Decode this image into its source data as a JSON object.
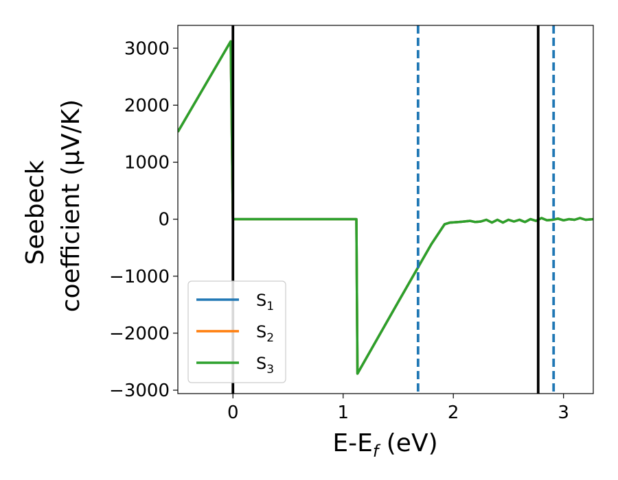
{
  "chart_data": {
    "type": "line",
    "xlabel": {
      "main": "E-E",
      "sub": "f",
      "rest": " (eV)"
    },
    "ylabel": {
      "line1": "Seebeck",
      "line2": "coefficient  (μV/K)"
    },
    "xlim": [
      -0.5,
      3.27
    ],
    "ylim": [
      -3060,
      3400
    ],
    "xticks": [
      0,
      1,
      2,
      3
    ],
    "yticks": [
      -3000,
      -2000,
      -1000,
      0,
      1000,
      2000,
      3000
    ],
    "ytick_labels": [
      "−3000",
      "−2000",
      "−1000",
      "0",
      "1000",
      "2000",
      "3000"
    ],
    "legend": {
      "position": "lower-left"
    },
    "series": [
      {
        "name": "S",
        "sub": "1",
        "color": "#1f77b4",
        "x": [
          -0.5,
          -0.02,
          0.0,
          0.02,
          1.1,
          1.12,
          1.13,
          1.5,
          1.8,
          1.92,
          1.97,
          2.05,
          2.1,
          2.15,
          2.2,
          2.25,
          2.3,
          2.35,
          2.4,
          2.45,
          2.5,
          2.55,
          2.6,
          2.65,
          2.7,
          2.75,
          2.8,
          2.85,
          2.9,
          2.95,
          3.0,
          3.05,
          3.1,
          3.15,
          3.2,
          3.27
        ],
        "y": [
          1530,
          3120,
          0,
          0,
          0,
          0,
          -2710,
          -1450,
          -440,
          -90,
          -60,
          -50,
          -40,
          -30,
          -50,
          -40,
          -10,
          -60,
          -10,
          -60,
          -10,
          -40,
          -10,
          -50,
          0,
          -30,
          20,
          -20,
          -10,
          10,
          -20,
          0,
          -10,
          20,
          -10,
          0
        ]
      },
      {
        "name": "S",
        "sub": "2",
        "color": "#ff7f0e",
        "x": [
          -0.5,
          -0.02,
          0.0,
          0.02,
          1.1,
          1.12,
          1.13,
          1.5,
          1.8,
          1.92,
          1.97,
          2.05,
          2.1,
          2.15,
          2.2,
          2.25,
          2.3,
          2.35,
          2.4,
          2.45,
          2.5,
          2.55,
          2.6,
          2.65,
          2.7,
          2.75,
          2.8,
          2.85,
          2.9,
          2.95,
          3.0,
          3.05,
          3.1,
          3.15,
          3.2,
          3.27
        ],
        "y": [
          1530,
          3120,
          0,
          0,
          0,
          0,
          -2710,
          -1450,
          -440,
          -90,
          -60,
          -50,
          -40,
          -30,
          -50,
          -40,
          -10,
          -60,
          -10,
          -60,
          -10,
          -40,
          -10,
          -50,
          0,
          -30,
          20,
          -20,
          -10,
          10,
          -20,
          0,
          -10,
          20,
          -10,
          0
        ]
      },
      {
        "name": "S",
        "sub": "3",
        "color": "#2ca02c",
        "x": [
          -0.5,
          -0.02,
          0.0,
          0.02,
          1.1,
          1.12,
          1.13,
          1.5,
          1.8,
          1.92,
          1.97,
          2.05,
          2.1,
          2.15,
          2.2,
          2.25,
          2.3,
          2.35,
          2.4,
          2.45,
          2.5,
          2.55,
          2.6,
          2.65,
          2.7,
          2.75,
          2.8,
          2.85,
          2.9,
          2.95,
          3.0,
          3.05,
          3.1,
          3.15,
          3.2,
          3.27
        ],
        "y": [
          1530,
          3120,
          0,
          0,
          0,
          0,
          -2710,
          -1450,
          -440,
          -90,
          -60,
          -50,
          -40,
          -30,
          -50,
          -40,
          -10,
          -60,
          -10,
          -60,
          -10,
          -40,
          -10,
          -50,
          0,
          -30,
          20,
          -20,
          -10,
          10,
          -20,
          0,
          -10,
          20,
          -10,
          0
        ]
      }
    ],
    "vlines": [
      {
        "x": 0.0,
        "style": "solid",
        "color": "#000000"
      },
      {
        "x": 1.68,
        "style": "dashed",
        "color": "#1f77b4"
      },
      {
        "x": 2.77,
        "style": "solid",
        "color": "#000000"
      },
      {
        "x": 2.91,
        "style": "dashed",
        "color": "#1f77b4"
      }
    ]
  }
}
